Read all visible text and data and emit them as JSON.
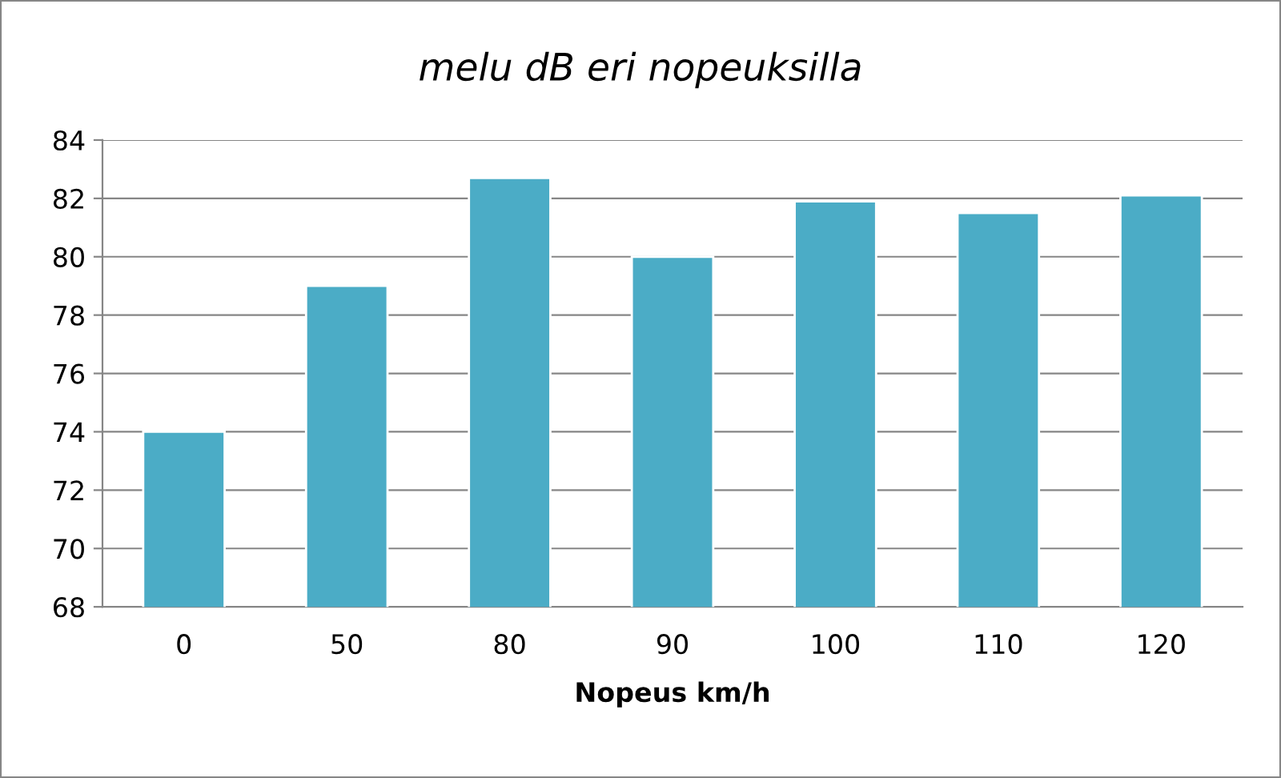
{
  "chart_data": {
    "type": "bar",
    "title": "melu dB eri nopeuksilla",
    "xlabel": "Nopeus km/h",
    "categories": [
      "0",
      "50",
      "80",
      "90",
      "100",
      "110",
      "120"
    ],
    "values": [
      74.0,
      79.0,
      82.7,
      80.0,
      81.9,
      81.5,
      82.1
    ],
    "color": "#4bacc6",
    "ylim": [
      68,
      84
    ],
    "yticks": [
      68,
      70,
      72,
      74,
      76,
      78,
      80,
      82,
      84
    ],
    "grid": "y",
    "legend": false
  }
}
